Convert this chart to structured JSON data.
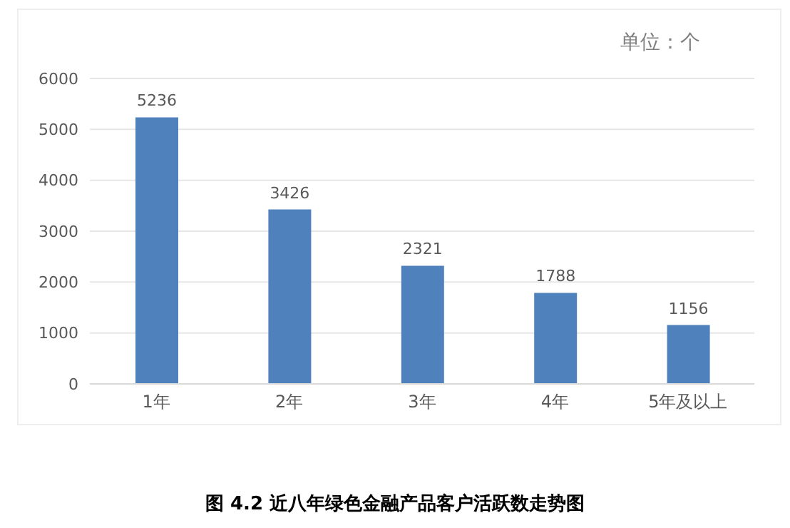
{
  "chart_data": {
    "type": "bar",
    "title": "图 4.2 近八年绿色金融产品客户活跃数走势图",
    "subtitle": "单位：个",
    "categories": [
      "1年",
      "2年",
      "3年",
      "4年",
      "5年及以上"
    ],
    "values": [
      5236,
      3426,
      2321,
      1788,
      1156
    ],
    "color": "#4f81bd",
    "ylim": [
      0,
      6000
    ],
    "yticks": [
      0,
      1000,
      2000,
      3000,
      4000,
      5000,
      6000
    ],
    "grid": "y",
    "data_labels": true
  }
}
